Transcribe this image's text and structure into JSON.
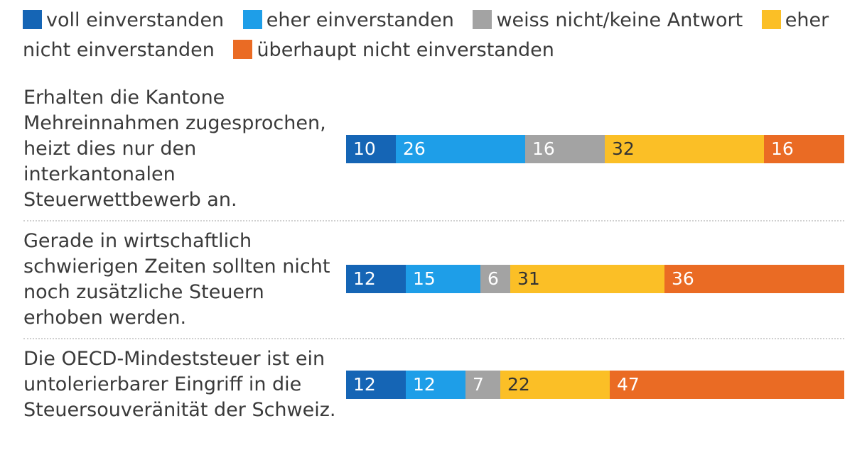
{
  "legend": [
    {
      "label": "voll einverstanden",
      "color": "#1565b5"
    },
    {
      "label": "eher einverstanden",
      "color": "#1e9ee8"
    },
    {
      "label": "weiss nicht/keine Antwort",
      "color": "#a3a3a3"
    },
    {
      "label": "eher nicht einverstanden",
      "color": "#fbbf26"
    },
    {
      "label": "überhaupt nicht einverstanden",
      "color": "#ea6b24"
    }
  ],
  "chart_data": {
    "type": "bar",
    "orientation": "horizontal",
    "stacked": true,
    "unit": "%",
    "categories": [
      "Erhalten die Kantone Mehreinnahmen zugesprochen, heizt dies nur den interkantonalen Steuerwettbewerb an.",
      "Gerade in wirtschaftlich schwierigen Zeiten sollten nicht noch zusätzliche Steuern erhoben werden.",
      "Die OECD-Mindeststeuer ist ein untolerierbarer Eingriff in die Steuersouveränität der Schweiz."
    ],
    "series": [
      {
        "name": "voll einverstanden",
        "values": [
          10,
          12,
          12
        ]
      },
      {
        "name": "eher einverstanden",
        "values": [
          26,
          15,
          12
        ]
      },
      {
        "name": "weiss nicht/keine Antwort",
        "values": [
          16,
          6,
          7
        ]
      },
      {
        "name": "eher nicht einverstanden",
        "values": [
          32,
          31,
          22
        ]
      },
      {
        "name": "überhaupt nicht einverstanden",
        "values": [
          16,
          36,
          47
        ]
      }
    ],
    "label_colors": [
      "#ffffff",
      "#ffffff",
      "#ffffff",
      "#333333",
      "#ffffff"
    ],
    "legend_position": "top"
  }
}
